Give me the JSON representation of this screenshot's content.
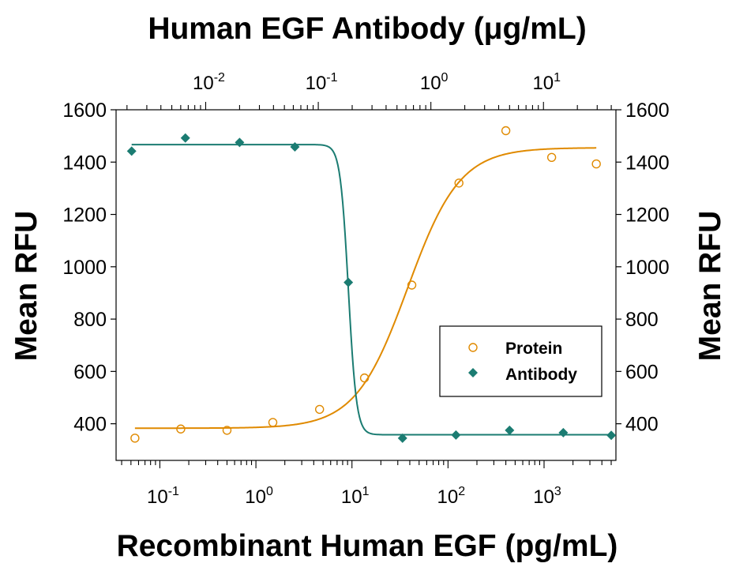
{
  "chart_data": {
    "type": "scatter",
    "top_title": "Human EGF Antibody (μg/mL)",
    "xlabel": "Recombinant Human EGF (pg/mL)",
    "ylabel_left": "Mean RFU",
    "ylabel_right": "Mean RFU",
    "x_scale": "log",
    "xlim": [
      0.035,
      5600
    ],
    "x_top_scale": "log",
    "x_top_lim": [
      0.0016,
      44
    ],
    "ylim": [
      260,
      1600
    ],
    "y_ticks": [
      400,
      600,
      800,
      1000,
      1200,
      1400,
      1600
    ],
    "x_ticks": [
      {
        "base": "10",
        "exp": "-1",
        "value": 0.1
      },
      {
        "base": "10",
        "exp": "0",
        "value": 1
      },
      {
        "base": "10",
        "exp": "1",
        "value": 10
      },
      {
        "base": "10",
        "exp": "2",
        "value": 100
      },
      {
        "base": "10",
        "exp": "3",
        "value": 1000
      }
    ],
    "x_top_ticks": [
      {
        "base": "10",
        "exp": "-2",
        "value": 0.01
      },
      {
        "base": "10",
        "exp": "-1",
        "value": 0.1
      },
      {
        "base": "10",
        "exp": "0",
        "value": 1
      },
      {
        "base": "10",
        "exp": "1",
        "value": 10
      }
    ],
    "legend_position": "lower-right",
    "series": [
      {
        "name": "Protein",
        "axis": "bottom",
        "marker": "open-circle",
        "color": "#e08a00",
        "x": [
          0.055,
          0.165,
          0.5,
          1.5,
          4.6,
          13.5,
          42,
          130,
          400,
          1200,
          3500
        ],
        "y": [
          345,
          380,
          375,
          405,
          455,
          575,
          930,
          1320,
          1520,
          1418,
          1393
        ],
        "fit": {
          "model": "4PL",
          "bottom": 383,
          "top": 1455,
          "ec50": 38,
          "hill": 1.6
        }
      },
      {
        "name": "Antibody",
        "axis": "top",
        "marker": "filled-diamond",
        "color": "#1b7c72",
        "x": [
          0.0022,
          0.0066,
          0.02,
          0.062,
          0.185,
          0.56,
          1.67,
          5,
          15,
          40
        ],
        "y": [
          1442,
          1492,
          1475,
          1458,
          940,
          345,
          357,
          375,
          366,
          356
        ],
        "fit": {
          "model": "4PL",
          "bottom": 358,
          "top": 1467,
          "ec50": 0.185,
          "hill": -12
        }
      }
    ]
  }
}
